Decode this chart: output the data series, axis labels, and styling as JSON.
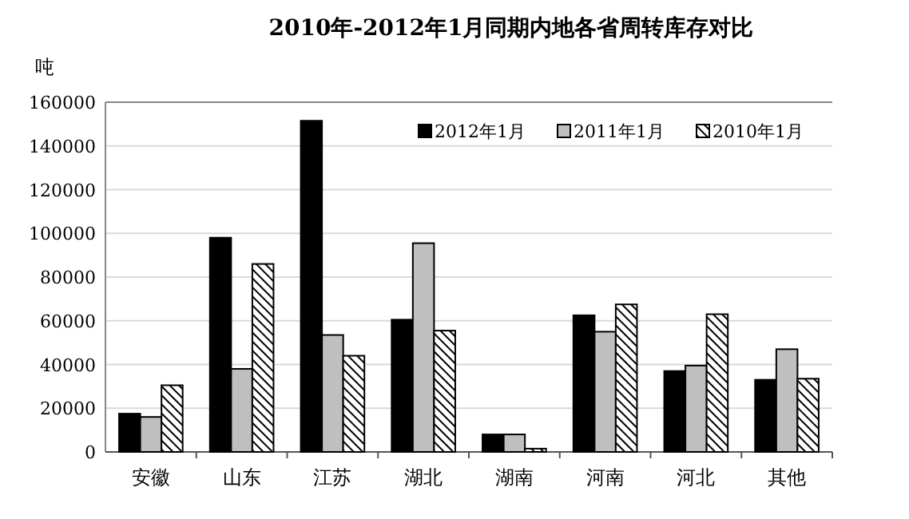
{
  "chart_data": {
    "type": "bar",
    "title": "2010年-2012年1月同期内地各省周转库存对比",
    "ylabel": "吨",
    "categories": [
      "安徽",
      "山东",
      "江苏",
      "湖北",
      "湖南",
      "河南",
      "河北",
      "其他"
    ],
    "series": [
      {
        "name": "2012年1月",
        "color": "#000000",
        "values": [
          17500,
          98000,
          151500,
          60500,
          8000,
          62500,
          37000,
          33000
        ]
      },
      {
        "name": "2011年1月",
        "color": "#bfbfbf",
        "values": [
          16000,
          38000,
          53500,
          95500,
          8000,
          55000,
          39500,
          47000
        ]
      },
      {
        "name": "2010年1月",
        "color": "#000000",
        "values": [
          30500,
          86000,
          44000,
          55500,
          1500,
          67500,
          63000,
          33500
        ]
      }
    ],
    "ylim": [
      0,
      160000
    ],
    "yticks": [
      0,
      20000,
      40000,
      60000,
      80000,
      100000,
      120000,
      140000,
      160000
    ],
    "grid": "y",
    "legend": "top right"
  }
}
